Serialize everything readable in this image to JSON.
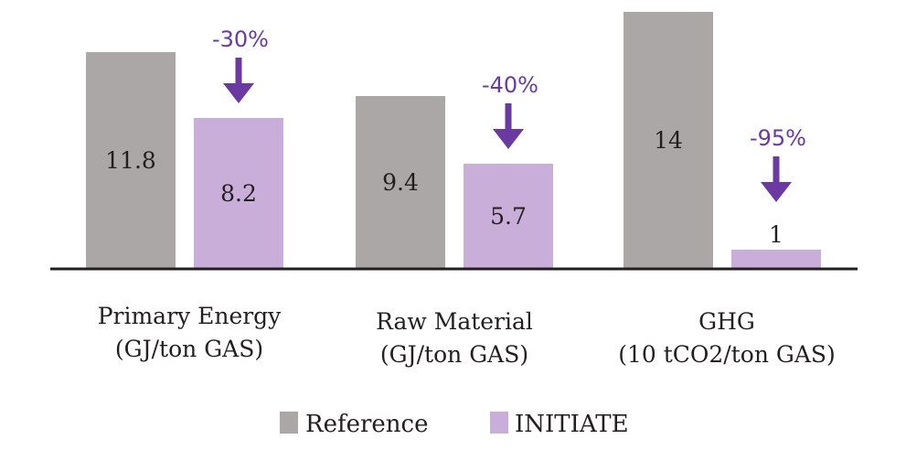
{
  "chart_data": {
    "type": "bar",
    "title": "",
    "xlabel": "",
    "ylabel": "",
    "ylim": [
      0,
      14
    ],
    "grid": false,
    "categories": [
      [
        "Primary Energy",
        "(GJ/ton GAS)"
      ],
      [
        "Raw Material",
        "(GJ/ton GAS)"
      ],
      [
        "GHG",
        "(10 tCO2/ton GAS)"
      ]
    ],
    "series": [
      {
        "name": "Reference",
        "color": "#aaa7a6",
        "values": [
          11.8,
          9.4,
          14
        ],
        "labels": [
          "11.8",
          "9.4",
          "14"
        ]
      },
      {
        "name": "INITIATE",
        "color": "#c9aed9",
        "values": [
          8.2,
          5.7,
          1
        ],
        "labels": [
          "8.2",
          "5.7",
          "1"
        ]
      }
    ],
    "annotations": [
      {
        "category": 0,
        "text": "-30%",
        "arrow": "down"
      },
      {
        "category": 1,
        "text": "-40%",
        "arrow": "down"
      },
      {
        "category": 2,
        "text": "-95%",
        "arrow": "down"
      }
    ],
    "annotation_color": "#6a3aa2",
    "axis_color": "#231f20",
    "legend": {
      "position": "bottom-center",
      "entries": [
        "Reference",
        "INITIATE"
      ]
    }
  }
}
